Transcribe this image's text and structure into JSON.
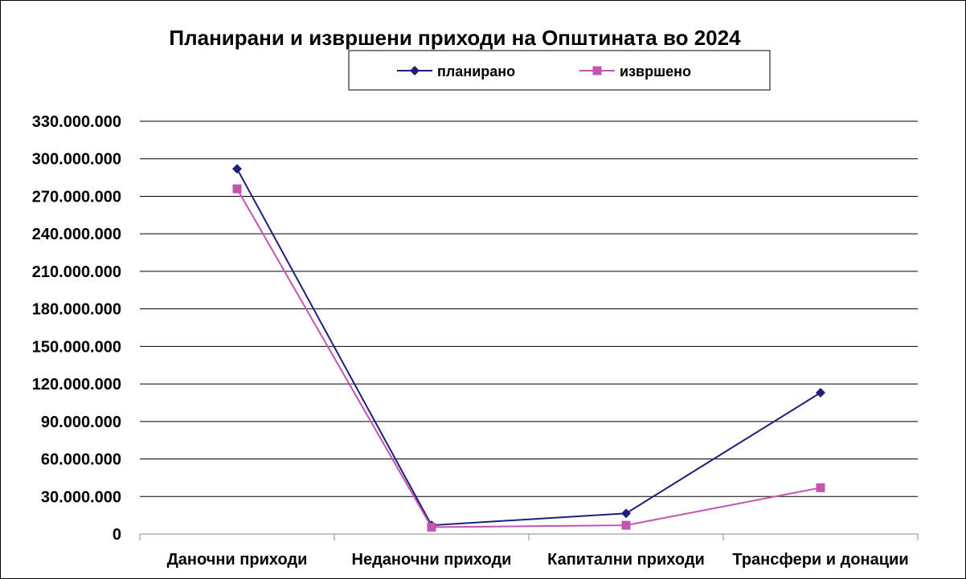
{
  "chart_data": {
    "type": "line",
    "title": "Планирани и извршени приходи на Општината во 2024",
    "categories": [
      "Даночни приходи",
      "Неданочни приходи",
      "Капитални приходи",
      "Трансфери и донации"
    ],
    "series": [
      {
        "name": "планирано",
        "color": "#1f1f7a",
        "marker": "diamond",
        "values": [
          292000000,
          7000000,
          16500000,
          113000000
        ]
      },
      {
        "name": "извршено",
        "color": "#c355b0",
        "marker": "square",
        "values": [
          276000000,
          5500000,
          7000000,
          37000000
        ]
      }
    ],
    "y_ticks": [
      "0",
      "30.000.000",
      "60.000.000",
      "90.000.000",
      "120.000.000",
      "150.000.000",
      "180.000.000",
      "210.000.000",
      "240.000.000",
      "270.000.000",
      "300.000.000",
      "330.000.000"
    ],
    "ylim": [
      0,
      330000000
    ],
    "ystep": 30000000,
    "grid": true,
    "legend_position": "top"
  }
}
